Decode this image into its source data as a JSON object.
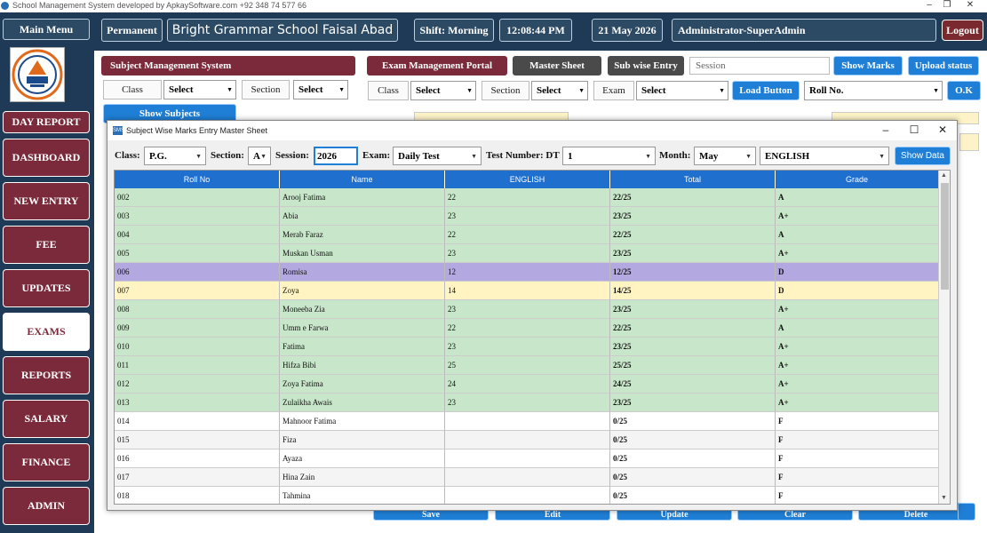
{
  "window": {
    "title": "School Management System developed by ApkaySoftware.com +92 348 74 577 66"
  },
  "header": {
    "main_menu": "Main Menu",
    "permanent": "Permanent",
    "school": "Bright Grammar School Faisal Abad",
    "shift": "Shift: Morning",
    "time": "12:08:44 PM",
    "date": "21 May 2026",
    "user": "Administrator-SuperAdmin",
    "logout": "Logout"
  },
  "sidebar": {
    "items": [
      {
        "label": "DAY REPORT"
      },
      {
        "label": "DASHBOARD"
      },
      {
        "label": "NEW ENTRY"
      },
      {
        "label": "FEE"
      },
      {
        "label": "UPDATES"
      },
      {
        "label": "EXAMS",
        "active": true
      },
      {
        "label": "REPORTS"
      },
      {
        "label": "SALARY"
      },
      {
        "label": "FINANCE"
      },
      {
        "label": "ADMIN"
      }
    ]
  },
  "subject_panel": {
    "title": "Subject Management System",
    "class_label": "Class",
    "class_value": "Select",
    "section_label": "Section",
    "section_value": "Select",
    "show_subjects": "Show Subjects"
  },
  "exam_panel": {
    "title": "Exam Management Portal",
    "master_sheet": "Master Sheet",
    "sub_wise_entry": "Sub wise Entry",
    "session_placeholder": "Session",
    "show_marks": "Show Marks",
    "upload_status": "Upload status",
    "class_label": "Class",
    "class_value": "Select",
    "section_label": "Section",
    "section_value": "Select",
    "exam_label": "Exam",
    "exam_value": "Select",
    "load_button": "Load Button",
    "roll_value": "Roll No.",
    "ok": "O.K"
  },
  "bottom_buttons": [
    "Save",
    "Edit",
    "Update",
    "Clear",
    "Delete"
  ],
  "dialog": {
    "title": "Subject Wise Marks Entry Master Sheet",
    "filters": {
      "class_label": "Class:",
      "class_value": "P.G.",
      "section_label": "Section:",
      "section_value": "A",
      "session_label": "Session:",
      "session_value": "2026",
      "exam_label": "Exam:",
      "exam_value": "Daily Test",
      "test_label": "Test Number: DT",
      "test_value": "1",
      "month_label": "Month:",
      "month_value": "May",
      "subject_value": "ENGLISH",
      "show_data": "Show Data"
    },
    "columns": [
      "Roll No",
      "Name",
      "ENGLISH",
      "Total",
      "Grade"
    ],
    "rows": [
      {
        "roll": "002",
        "name": "Arooj Fatima",
        "marks": "22",
        "total": "22/25",
        "grade": "A",
        "color": "#c8e6c9"
      },
      {
        "roll": "003",
        "name": "Abia",
        "marks": "23",
        "total": "23/25",
        "grade": "A+",
        "color": "#c8e6c9"
      },
      {
        "roll": "004",
        "name": "Merab Faraz",
        "marks": "22",
        "total": "22/25",
        "grade": "A",
        "color": "#c8e6c9"
      },
      {
        "roll": "005",
        "name": "Muskan Usman",
        "marks": "23",
        "total": "23/25",
        "grade": "A+",
        "color": "#c8e6c9"
      },
      {
        "roll": "006",
        "name": "Romisa",
        "marks": "12",
        "total": "12/25",
        "grade": "D",
        "color": "#b3a9e0"
      },
      {
        "roll": "007",
        "name": "Zoya",
        "marks": "14",
        "total": "14/25",
        "grade": "D",
        "color": "#fff4c2"
      },
      {
        "roll": "008",
        "name": "Moneeba Zia",
        "marks": "23",
        "total": "23/25",
        "grade": "A+",
        "color": "#c8e6c9"
      },
      {
        "roll": "009",
        "name": "Umm e Farwa",
        "marks": "22",
        "total": "22/25",
        "grade": "A",
        "color": "#c8e6c9"
      },
      {
        "roll": "010",
        "name": "Fatima",
        "marks": "23",
        "total": "23/25",
        "grade": "A+",
        "color": "#c8e6c9"
      },
      {
        "roll": "011",
        "name": "Hifza Bibi",
        "marks": "25",
        "total": "25/25",
        "grade": "A+",
        "color": "#c8e6c9"
      },
      {
        "roll": "012",
        "name": "Zoya Fatima",
        "marks": "24",
        "total": "24/25",
        "grade": "A+",
        "color": "#c8e6c9"
      },
      {
        "roll": "013",
        "name": "Zulaikha Awais",
        "marks": "23",
        "total": "23/25",
        "grade": "A+",
        "color": "#c8e6c9"
      },
      {
        "roll": "014",
        "name": "Mahnoor Fatima",
        "marks": "",
        "total": "0/25",
        "grade": "F",
        "color": "#ffffff"
      },
      {
        "roll": "015",
        "name": "Fiza",
        "marks": "",
        "total": "0/25",
        "grade": "F",
        "color": "#f4f4f4"
      },
      {
        "roll": "016",
        "name": "Ayaza",
        "marks": "",
        "total": "0/25",
        "grade": "F",
        "color": "#ffffff"
      },
      {
        "roll": "017",
        "name": "Hina Zain",
        "marks": "",
        "total": "0/25",
        "grade": "F",
        "color": "#f4f4f4"
      },
      {
        "roll": "018",
        "name": "Tahmina",
        "marks": "",
        "total": "0/25",
        "grade": "F",
        "color": "#ffffff"
      }
    ]
  }
}
